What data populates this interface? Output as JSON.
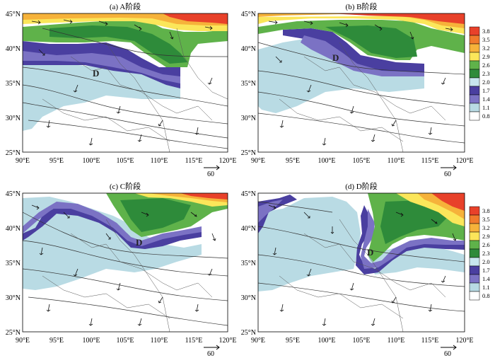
{
  "figure": {
    "panels": [
      {
        "id": "a",
        "title": "(a) A阶段",
        "low_label": "D",
        "vector_ref": "60"
      },
      {
        "id": "b",
        "title": "(b) B阶段",
        "low_label": "D",
        "vector_ref": "60"
      },
      {
        "id": "c",
        "title": "(c) C阶段",
        "low_label": "D",
        "vector_ref": "60"
      },
      {
        "id": "d",
        "title": "(d) D阶段",
        "low_label": "D",
        "vector_ref": "60"
      }
    ],
    "lat_labels": [
      "45°N",
      "40°N",
      "35°N",
      "30°N",
      "25°N"
    ],
    "lon_labels": [
      "90°E",
      "95°E",
      "100°E",
      "105°E",
      "110°E",
      "115°E",
      "120°E"
    ],
    "colorbar": {
      "ticks": [
        "3.8",
        "3.5",
        "3.2",
        "2.9",
        "2.6",
        "2.3",
        "2.0",
        "1.7",
        "1.4",
        "1.1",
        "0.8"
      ],
      "colors": [
        "#e8412a",
        "#f07a2c",
        "#f6b23a",
        "#fbe65a",
        "#5fb24a",
        "#2e8b3a",
        "#c7e6ee",
        "#4a3fa0",
        "#7b72c4",
        "#b9dbe4",
        "#ffffff"
      ]
    }
  }
}
